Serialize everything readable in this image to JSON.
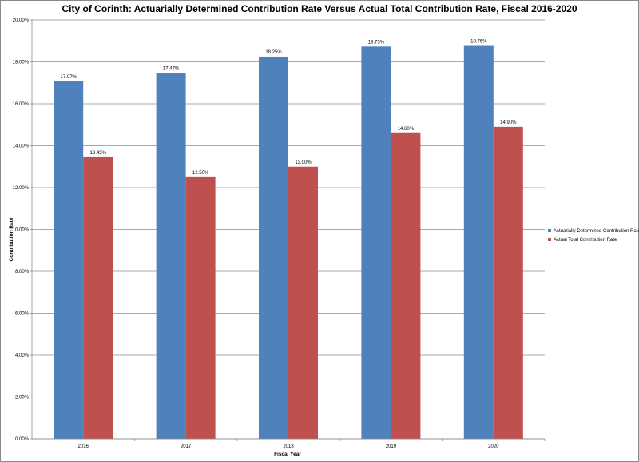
{
  "chart_data": {
    "type": "bar",
    "title": "City of Corinth: Actuarially Determined Contribution Rate Versus Actual Total Contribution Rate, Fiscal 2016-2020",
    "xlabel": "Fiscal Year",
    "ylabel": "Contribution Rate",
    "categories": [
      "2016",
      "2017",
      "2018",
      "2019",
      "2020"
    ],
    "ylim": [
      0,
      20
    ],
    "yticks": [
      "0.00%",
      "2.00%",
      "4.00%",
      "6.00%",
      "8.00%",
      "10.00%",
      "12.00%",
      "14.00%",
      "16.00%",
      "18.00%",
      "20.00%"
    ],
    "grid": true,
    "legend_position": "right",
    "series": [
      {
        "name": "Actuarially Determined Contribution Rate",
        "color": "#4f81bd",
        "values": [
          17.07,
          17.47,
          18.25,
          18.73,
          18.76
        ],
        "labels": [
          "17.07%",
          "17.47%",
          "18.25%",
          "18.73%",
          "18.76%"
        ]
      },
      {
        "name": "Actual Total Contribution Rate",
        "color": "#c0504d",
        "values": [
          13.45,
          12.5,
          13.0,
          14.6,
          14.9
        ],
        "labels": [
          "13.45%",
          "12.50%",
          "13.00%",
          "14.60%",
          "14.90%"
        ]
      }
    ]
  }
}
